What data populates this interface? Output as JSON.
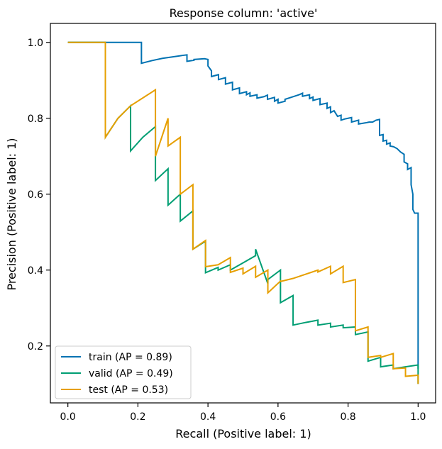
{
  "chart_data": {
    "type": "line",
    "title": "Response column: 'active'",
    "xlabel": "Recall (Positive label: 1)",
    "ylabel": "Precision (Positive label: 1)",
    "xlim": [
      -0.05,
      1.05
    ],
    "ylim": [
      0.05,
      1.05
    ],
    "xticks": [
      0.0,
      0.2,
      0.4,
      0.6,
      0.8,
      1.0
    ],
    "xtick_labels": [
      "0.0",
      "0.2",
      "0.4",
      "0.6",
      "0.8",
      "1.0"
    ],
    "yticks": [
      0.2,
      0.4,
      0.6,
      0.8,
      1.0
    ],
    "ytick_labels": [
      "0.2",
      "0.4",
      "0.6",
      "0.8",
      "1.0"
    ],
    "grid": false,
    "legend_position": "lower-left",
    "series": [
      {
        "name": "train (AP = 0.89)",
        "color": "#0072b2",
        "x": [
          0.0,
          0.21,
          0.21,
          0.24,
          0.27,
          0.3,
          0.33,
          0.34,
          0.34,
          0.36,
          0.36,
          0.39,
          0.4,
          0.4,
          0.41,
          0.41,
          0.43,
          0.43,
          0.45,
          0.45,
          0.47,
          0.47,
          0.49,
          0.49,
          0.51,
          0.51,
          0.52,
          0.52,
          0.54,
          0.54,
          0.56,
          0.57,
          0.57,
          0.59,
          0.59,
          0.6,
          0.6,
          0.62,
          0.62,
          0.64,
          0.66,
          0.67,
          0.67,
          0.69,
          0.69,
          0.7,
          0.7,
          0.72,
          0.72,
          0.74,
          0.74,
          0.75,
          0.75,
          0.76,
          0.77,
          0.78,
          0.78,
          0.79,
          0.8,
          0.81,
          0.81,
          0.83,
          0.83,
          0.85,
          0.86,
          0.87,
          0.88,
          0.89,
          0.89,
          0.9,
          0.9,
          0.91,
          0.91,
          0.92,
          0.92,
          0.93,
          0.94,
          0.95,
          0.96,
          0.96,
          0.97,
          0.97,
          0.98,
          0.98,
          0.985,
          0.985,
          0.99,
          0.99,
          1.0,
          1.0
        ],
        "y": [
          1.0,
          1.0,
          0.945,
          0.952,
          0.958,
          0.962,
          0.966,
          0.967,
          0.95,
          0.953,
          0.955,
          0.957,
          0.955,
          0.938,
          0.925,
          0.91,
          0.915,
          0.902,
          0.907,
          0.89,
          0.895,
          0.875,
          0.88,
          0.865,
          0.87,
          0.862,
          0.867,
          0.858,
          0.862,
          0.853,
          0.857,
          0.861,
          0.85,
          0.855,
          0.845,
          0.85,
          0.84,
          0.845,
          0.85,
          0.856,
          0.862,
          0.866,
          0.858,
          0.862,
          0.852,
          0.856,
          0.847,
          0.852,
          0.836,
          0.84,
          0.826,
          0.83,
          0.815,
          0.82,
          0.805,
          0.808,
          0.795,
          0.798,
          0.8,
          0.802,
          0.79,
          0.795,
          0.785,
          0.788,
          0.79,
          0.79,
          0.795,
          0.797,
          0.755,
          0.757,
          0.74,
          0.742,
          0.732,
          0.735,
          0.727,
          0.725,
          0.72,
          0.711,
          0.705,
          0.685,
          0.68,
          0.665,
          0.67,
          0.625,
          0.6,
          0.56,
          0.55,
          0.55,
          0.55,
          0.14
        ]
      },
      {
        "name": "valid (AP = 0.49)",
        "color": "#009e73",
        "x": [
          0.0,
          0.107,
          0.107,
          0.143,
          0.179,
          0.179,
          0.214,
          0.25,
          0.25,
          0.286,
          0.286,
          0.321,
          0.321,
          0.357,
          0.357,
          0.393,
          0.393,
          0.429,
          0.429,
          0.464,
          0.464,
          0.5,
          0.536,
          0.536,
          0.571,
          0.571,
          0.607,
          0.607,
          0.643,
          0.643,
          0.679,
          0.714,
          0.714,
          0.75,
          0.75,
          0.786,
          0.786,
          0.821,
          0.821,
          0.857,
          0.857,
          0.893,
          0.893,
          0.929,
          0.929,
          0.964,
          0.964,
          1.0,
          1.0
        ],
        "y": [
          1.0,
          1.0,
          0.75,
          0.8,
          0.833,
          0.714,
          0.75,
          0.778,
          0.636,
          0.667,
          0.571,
          0.6,
          0.529,
          0.556,
          0.455,
          0.476,
          0.393,
          0.407,
          0.4,
          0.414,
          0.4,
          0.419,
          0.438,
          0.455,
          0.364,
          0.375,
          0.4,
          0.314,
          0.333,
          0.255,
          0.262,
          0.268,
          0.255,
          0.26,
          0.25,
          0.255,
          0.248,
          0.25,
          0.23,
          0.237,
          0.16,
          0.17,
          0.145,
          0.15,
          0.14,
          0.145,
          0.145,
          0.15,
          0.1
        ]
      },
      {
        "name": "test (AP = 0.53)",
        "color": "#e69f00",
        "x": [
          0.0,
          0.107,
          0.107,
          0.143,
          0.179,
          0.25,
          0.25,
          0.286,
          0.286,
          0.321,
          0.321,
          0.357,
          0.357,
          0.393,
          0.393,
          0.429,
          0.464,
          0.464,
          0.5,
          0.5,
          0.536,
          0.536,
          0.571,
          0.571,
          0.607,
          0.607,
          0.643,
          0.714,
          0.714,
          0.75,
          0.75,
          0.786,
          0.786,
          0.821,
          0.821,
          0.857,
          0.857,
          0.893,
          0.893,
          0.929,
          0.929,
          0.964,
          0.964,
          1.0,
          1.0
        ],
        "y": [
          1.0,
          1.0,
          0.75,
          0.8,
          0.833,
          0.875,
          0.7,
          0.8,
          0.727,
          0.75,
          0.6,
          0.625,
          0.455,
          0.478,
          0.409,
          0.414,
          0.433,
          0.394,
          0.405,
          0.39,
          0.41,
          0.381,
          0.4,
          0.34,
          0.371,
          0.37,
          0.378,
          0.4,
          0.395,
          0.41,
          0.39,
          0.41,
          0.367,
          0.375,
          0.24,
          0.25,
          0.17,
          0.175,
          0.17,
          0.18,
          0.14,
          0.142,
          0.12,
          0.123,
          0.1
        ]
      }
    ]
  }
}
